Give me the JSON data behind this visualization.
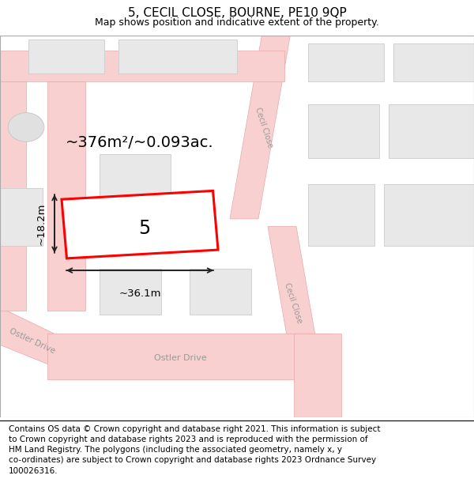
{
  "title": "5, CECIL CLOSE, BOURNE, PE10 9QP",
  "subtitle": "Map shows position and indicative extent of the property.",
  "footer": "Contains OS data © Crown copyright and database right 2021. This information is subject\nto Crown copyright and database rights 2023 and is reproduced with the permission of\nHM Land Registry. The polygons (including the associated geometry, namely x, y\nco-ordinates) are subject to Crown copyright and database rights 2023 Ordnance Survey\n100026316.",
  "bg_color": "#ffffff",
  "map_bg": "#ffffff",
  "road_color": "#f9d0d0",
  "road_edge_color": "#e8a8a8",
  "building_color": "#e8e8e8",
  "building_edge": "#d0d0d0",
  "prop_color": "#ff0000",
  "area_label": "~376m²/~0.093ac.",
  "width_label": "~36.1m",
  "height_label": "~18.2m",
  "number_label": "5",
  "title_fontsize": 11,
  "subtitle_fontsize": 9,
  "footer_fontsize": 7.5,
  "label_fontsize": 14,
  "number_fontsize": 17,
  "dim_fontsize": 9.5
}
